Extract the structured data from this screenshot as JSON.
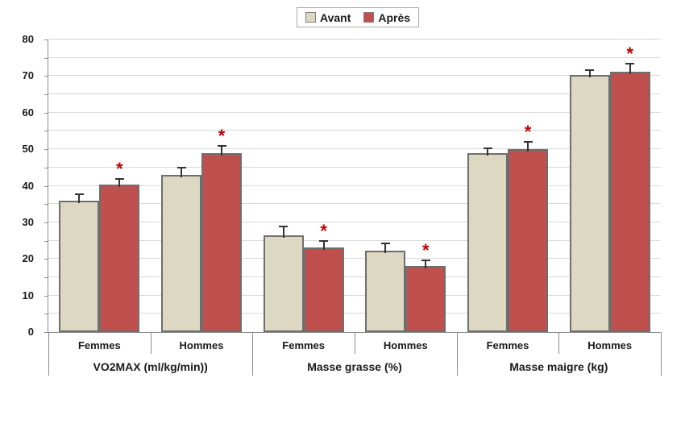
{
  "colors": {
    "avant_fill": "#DDD8C2",
    "apres_fill": "#C0504D",
    "bar_border": "#6E6E6E",
    "gridline": "#D9D9D9",
    "axis": "#8D8D8D",
    "error_bar": "#333333",
    "asterisk": "#C00000",
    "legend_border": "#ABABAB"
  },
  "chart_data": {
    "type": "bar",
    "title": "",
    "xlabel": "",
    "ylabel": "",
    "ylim": [
      0,
      80
    ],
    "ytick_label_step": 10,
    "gridline_step": 5,
    "grid": true,
    "legend_position": "top-center",
    "legend": [
      "Avant",
      "Après"
    ],
    "groups": [
      "VO2MAX (ml/kg/min))",
      "Masse grasse (%)",
      "Masse maigre (kg)"
    ],
    "categories": [
      "Femmes",
      "Hommes",
      "Femmes",
      "Hommes",
      "Femmes",
      "Hommes"
    ],
    "series": [
      {
        "name": "Avant",
        "color": "#DDD8C2",
        "values": [
          36,
          43,
          26.5,
          22.2,
          49,
          70.3
        ],
        "errors": [
          1.5,
          1.8,
          2.2,
          1.9,
          1.0,
          1.2
        ],
        "significance": [
          "",
          "",
          "",
          "",
          "",
          ""
        ]
      },
      {
        "name": "Après",
        "color": "#C0504D",
        "values": [
          40.3,
          49,
          23.2,
          18,
          50,
          71.2
        ],
        "errors": [
          1.4,
          1.6,
          1.4,
          1.4,
          1.8,
          2.0
        ],
        "significance": [
          "*",
          "*",
          "*",
          "*",
          "*",
          "*"
        ]
      }
    ]
  }
}
